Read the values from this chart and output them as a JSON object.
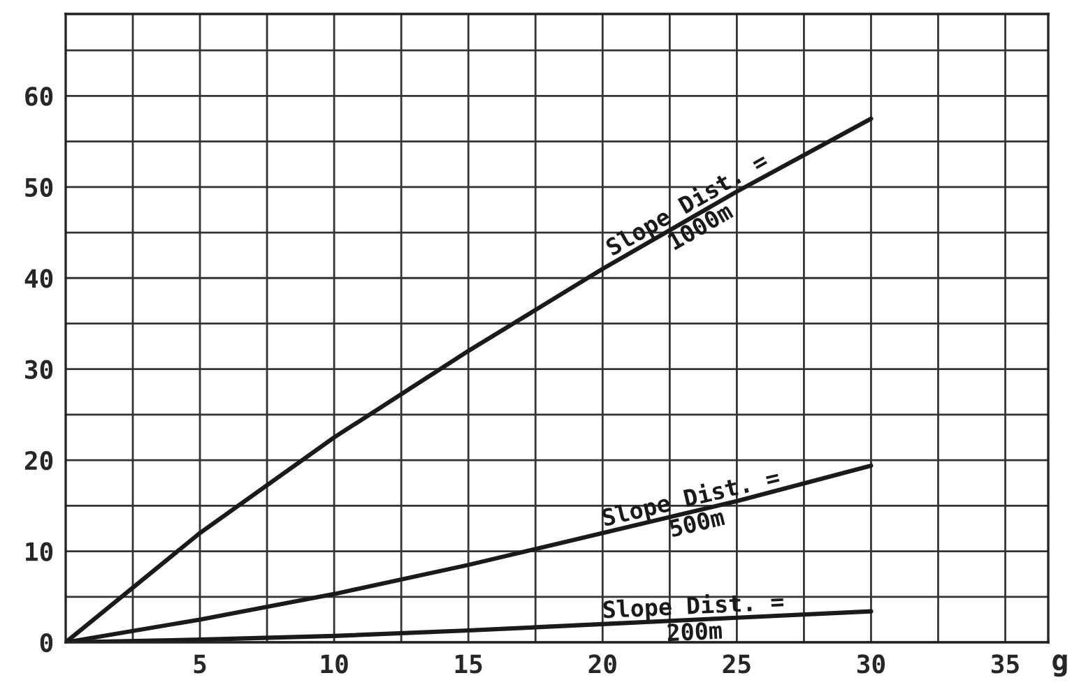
{
  "chart_data": {
    "type": "line",
    "xlabel": "g",
    "xlim": [
      0,
      36.6
    ],
    "ylim": [
      0,
      69
    ],
    "xticks": [
      {
        "value": 2.5,
        "label": null
      },
      5,
      {
        "value": 7.5,
        "label": null
      },
      10,
      {
        "value": 12.5,
        "label": null
      },
      15,
      {
        "value": 17.5,
        "label": null
      },
      20,
      {
        "value": 22.5,
        "label": null
      },
      25,
      {
        "value": 27.5,
        "label": null
      },
      30,
      {
        "value": 32.5,
        "label": null
      },
      35
    ],
    "yticks": [
      0,
      {
        "value": 5,
        "label": null
      },
      10,
      {
        "value": 15,
        "label": null
      },
      20,
      {
        "value": 25,
        "label": null
      },
      30,
      {
        "value": 35,
        "label": null
      },
      40,
      {
        "value": 45,
        "label": null
      },
      50,
      {
        "value": 55,
        "label": null
      },
      60,
      {
        "value": 65,
        "label": null
      }
    ],
    "grid": true,
    "marker": "none",
    "line_style": "solid",
    "x": [
      0,
      5,
      10,
      15,
      20,
      25,
      30
    ],
    "series": [
      {
        "name": "Slope Dist. =\n1000m",
        "color": "#1a1a1a",
        "values": [
          0,
          12,
          22.5,
          32,
          41,
          49.5,
          57.5
        ]
      },
      {
        "name": "Slope Dist. =\n500m",
        "color": "#1a1a1a",
        "values": [
          0,
          2.5,
          5.3,
          8.5,
          12,
          15.5,
          19.4
        ]
      },
      {
        "name": "Slope Dist. =\n200m",
        "color": "#1a1a1a",
        "values": [
          0,
          0.3,
          0.7,
          1.3,
          2,
          2.7,
          3.4
        ]
      }
    ]
  }
}
